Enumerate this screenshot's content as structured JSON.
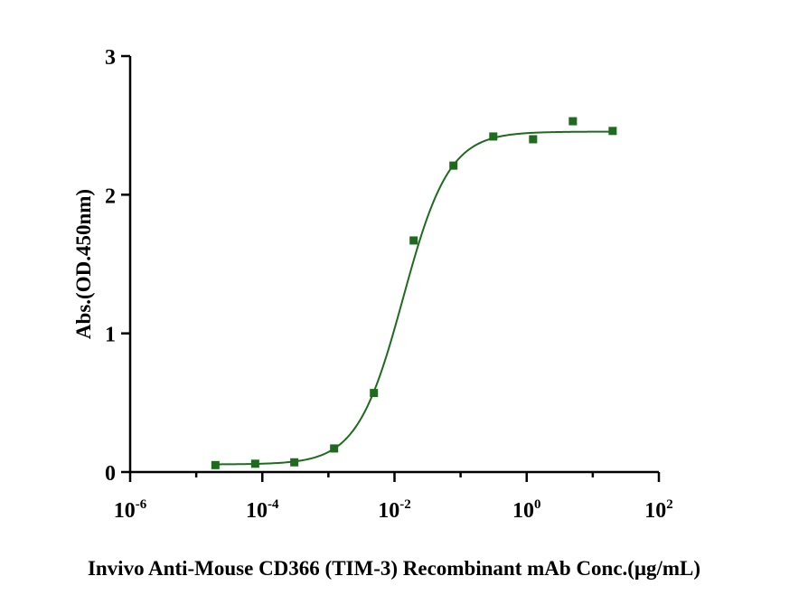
{
  "chart_data": {
    "type": "scatter",
    "title": "",
    "xlabel": "Invivo Anti-Mouse CD366 (TIM-3) Recombinant mAb Conc.(μg/mL)",
    "ylabel": "Abs.(OD.450nm)",
    "x_scale": "log",
    "xlim": [
      1e-06,
      100
    ],
    "ylim": [
      0,
      3
    ],
    "x_ticks": [
      {
        "value": 1e-06,
        "base": "10",
        "exp": "-6"
      },
      {
        "value": 0.0001,
        "base": "10",
        "exp": "-4"
      },
      {
        "value": 0.01,
        "base": "10",
        "exp": "-2"
      },
      {
        "value": 1,
        "base": "10",
        "exp": "0"
      },
      {
        "value": 100,
        "base": "10",
        "exp": "2"
      }
    ],
    "y_ticks": [
      0,
      1,
      2,
      3
    ],
    "grid": false,
    "series": [
      {
        "color": "#1e6b1e",
        "marker": "square",
        "points": [
          {
            "x": 1.95e-05,
            "y": 0.05
          },
          {
            "x": 7.8e-05,
            "y": 0.06
          },
          {
            "x": 0.000305,
            "y": 0.07
          },
          {
            "x": 0.00122,
            "y": 0.17
          },
          {
            "x": 0.00488,
            "y": 0.57
          },
          {
            "x": 0.0195,
            "y": 1.67
          },
          {
            "x": 0.078,
            "y": 2.21
          },
          {
            "x": 0.3125,
            "y": 2.42
          },
          {
            "x": 1.25,
            "y": 2.4
          },
          {
            "x": 5,
            "y": 2.53
          },
          {
            "x": 20,
            "y": 2.46
          }
        ],
        "fit": {
          "model": "4PL",
          "bottom": 0.055,
          "top": 2.455,
          "ec50": 0.0135,
          "hill": 1.25
        }
      }
    ]
  }
}
